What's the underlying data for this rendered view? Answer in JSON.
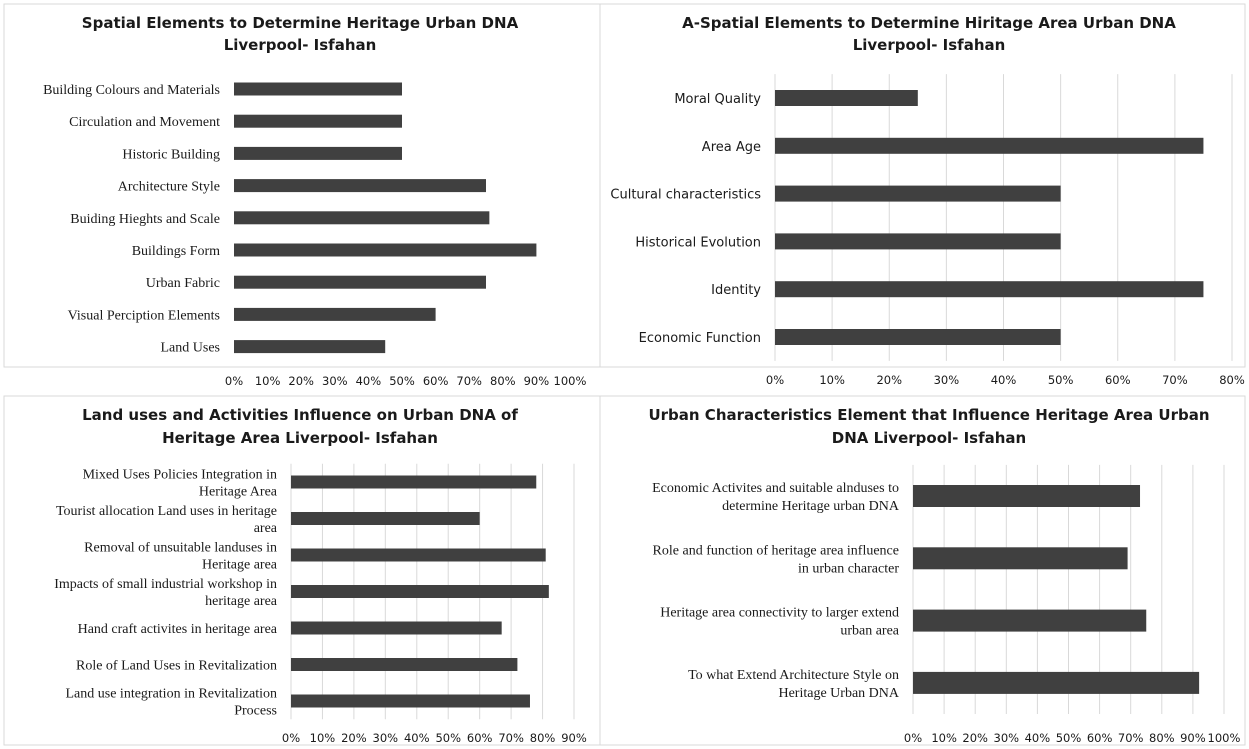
{
  "chart_data": [
    {
      "type": "bar",
      "orientation": "horizontal",
      "title": [
        "Spatial Elements to Determine Heritage Urban DNA",
        "Liverpool- Isfahan"
      ],
      "categories": [
        "Building Colours and Materials",
        "Circulation and Movement",
        "Historic Building",
        "Architecture Style",
        "Buiding Hieghts and Scale",
        "Buildings Form",
        "Urban Fabric",
        "Visual Perciption Elements",
        "Land Uses"
      ],
      "values": [
        50,
        50,
        50,
        75,
        76,
        90,
        75,
        60,
        45
      ],
      "xlim": [
        0,
        100
      ],
      "ticks": [
        "0%",
        "10%",
        "20%",
        "30%",
        "40%",
        "50%",
        "60%",
        "70%",
        "80%",
        "90%",
        "100%"
      ],
      "grid": false,
      "bar_color": "#404040"
    },
    {
      "type": "bar",
      "orientation": "horizontal",
      "title": [
        "A-Spatial Elements to Determine Hiritage Area Urban DNA",
        "Liverpool- Isfahan"
      ],
      "categories": [
        "Moral Quality",
        "Area Age",
        "Cultural characteristics",
        "Historical Evolution",
        "Identity",
        "Economic Function"
      ],
      "values": [
        25,
        75,
        50,
        50,
        75,
        50
      ],
      "xlim": [
        0,
        80
      ],
      "ticks": [
        "0%",
        "10%",
        "20%",
        "30%",
        "40%",
        "50%",
        "60%",
        "70%",
        "80%"
      ],
      "grid": true,
      "bar_color": "#404040"
    },
    {
      "type": "bar",
      "orientation": "horizontal",
      "title": [
        "Land uses and Activities Influence on Urban DNA of",
        "Heritage Area Liverpool- Isfahan"
      ],
      "categories": [
        [
          "Mixed Uses Policies Integration in",
          "Heritage Area"
        ],
        [
          "Tourist allocation  Land uses in heritage",
          "area"
        ],
        [
          "Removal of unsuitable landuses in",
          "Heritage area"
        ],
        [
          "Impacts of small industrial workshop in",
          "heritage area"
        ],
        [
          "Hand craft activites in heritage area"
        ],
        [
          "Role of Land Uses in Revitalization"
        ],
        [
          "Land use integration in Revitalization",
          "Process"
        ]
      ],
      "values": [
        78,
        60,
        81,
        82,
        67,
        72,
        76
      ],
      "xlim": [
        0,
        90
      ],
      "ticks": [
        "0%",
        "10%",
        "20%",
        "30%",
        "40%",
        "50%",
        "60%",
        "70%",
        "80%",
        "90%"
      ],
      "grid": true,
      "bar_color": "#404040"
    },
    {
      "type": "bar",
      "orientation": "horizontal",
      "title": [
        "Urban Characteristics Element that Influence Heritage Area Urban",
        "DNA Liverpool- Isfahan"
      ],
      "categories": [
        [
          "Economic Activites and suitable alnduses to",
          "determine Heritage urban DNA"
        ],
        [
          "Role and function of heritage area influence",
          "in urban character"
        ],
        [
          "Heritage area connectivity to larger extend",
          "urban area"
        ],
        [
          "To what Extend Architecture Style on",
          "Heritage Urban DNA"
        ]
      ],
      "values": [
        73,
        69,
        75,
        92
      ],
      "xlim": [
        0,
        100
      ],
      "ticks": [
        "0%",
        "10%",
        "20%",
        "30%",
        "40%",
        "50%",
        "60%",
        "70%",
        "80%",
        "90%",
        "100%"
      ],
      "grid": true,
      "bar_color": "#404040"
    }
  ]
}
